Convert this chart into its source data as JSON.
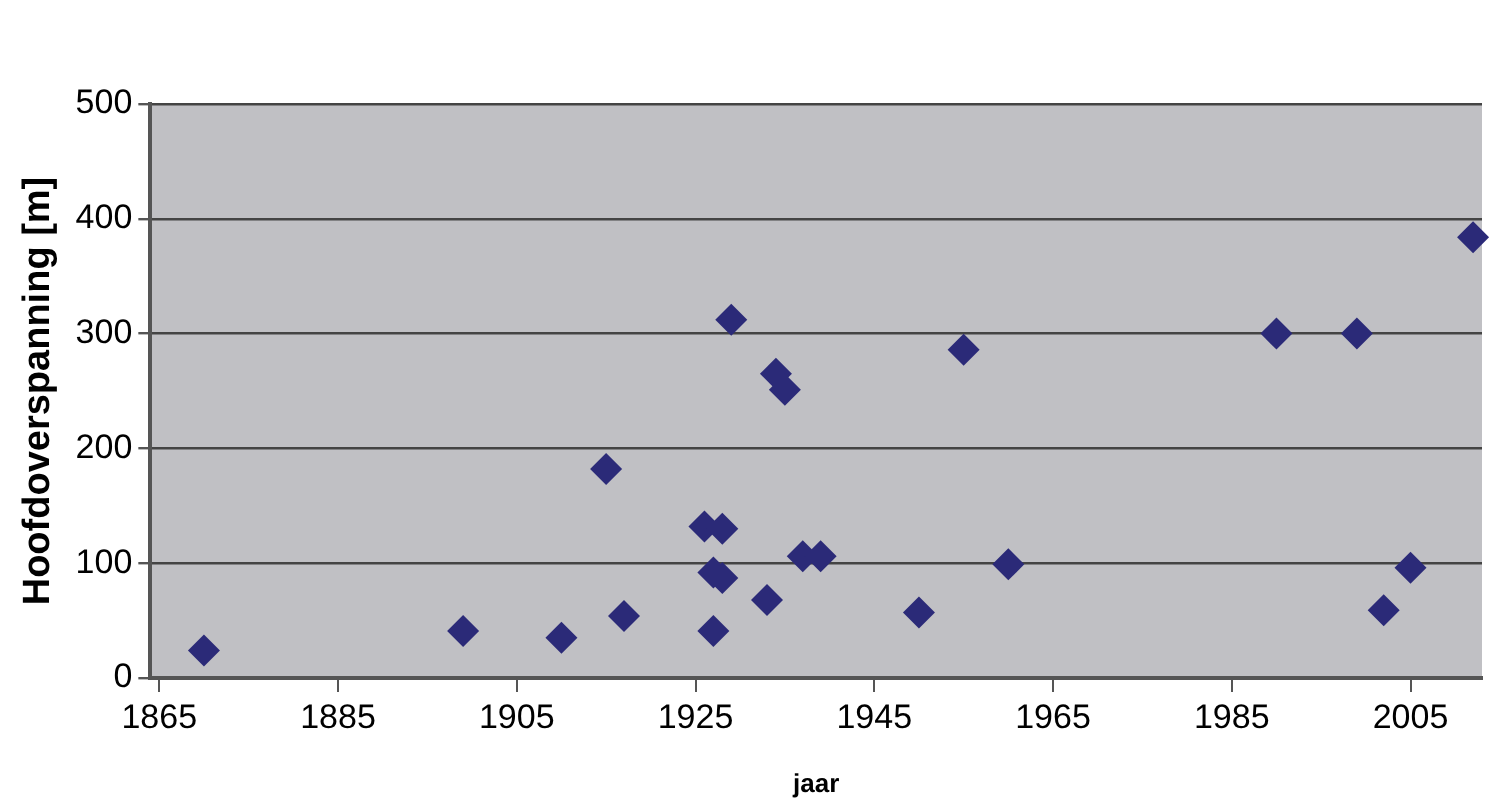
{
  "chart_data": {
    "type": "scatter",
    "xlabel": "jaar",
    "ylabel": "Hoofdoverspanning [m]",
    "x": [
      1870,
      1899,
      1910,
      1915,
      1917,
      1926,
      1928,
      1927,
      1928,
      1927,
      1929,
      1934,
      1935,
      1933,
      1937,
      1939,
      1950,
      1955,
      1960,
      1990,
      1999,
      2002,
      2005,
      2012
    ],
    "values": [
      24,
      41,
      35,
      182,
      54,
      132,
      130,
      92,
      87,
      41,
      312,
      265,
      251,
      68,
      106,
      106,
      57,
      286,
      99,
      300,
      300,
      59,
      96,
      384
    ],
    "color": "#2b2a78",
    "marker": "diamond",
    "grid": "y",
    "legend": false,
    "xlim": [
      1864,
      2013
    ],
    "xticks": [
      1865,
      1885,
      1905,
      1925,
      1945,
      1965,
      1985,
      2005
    ],
    "ylim": [
      0,
      500
    ],
    "yticks": [
      0,
      100,
      200,
      300,
      400,
      500
    ]
  }
}
